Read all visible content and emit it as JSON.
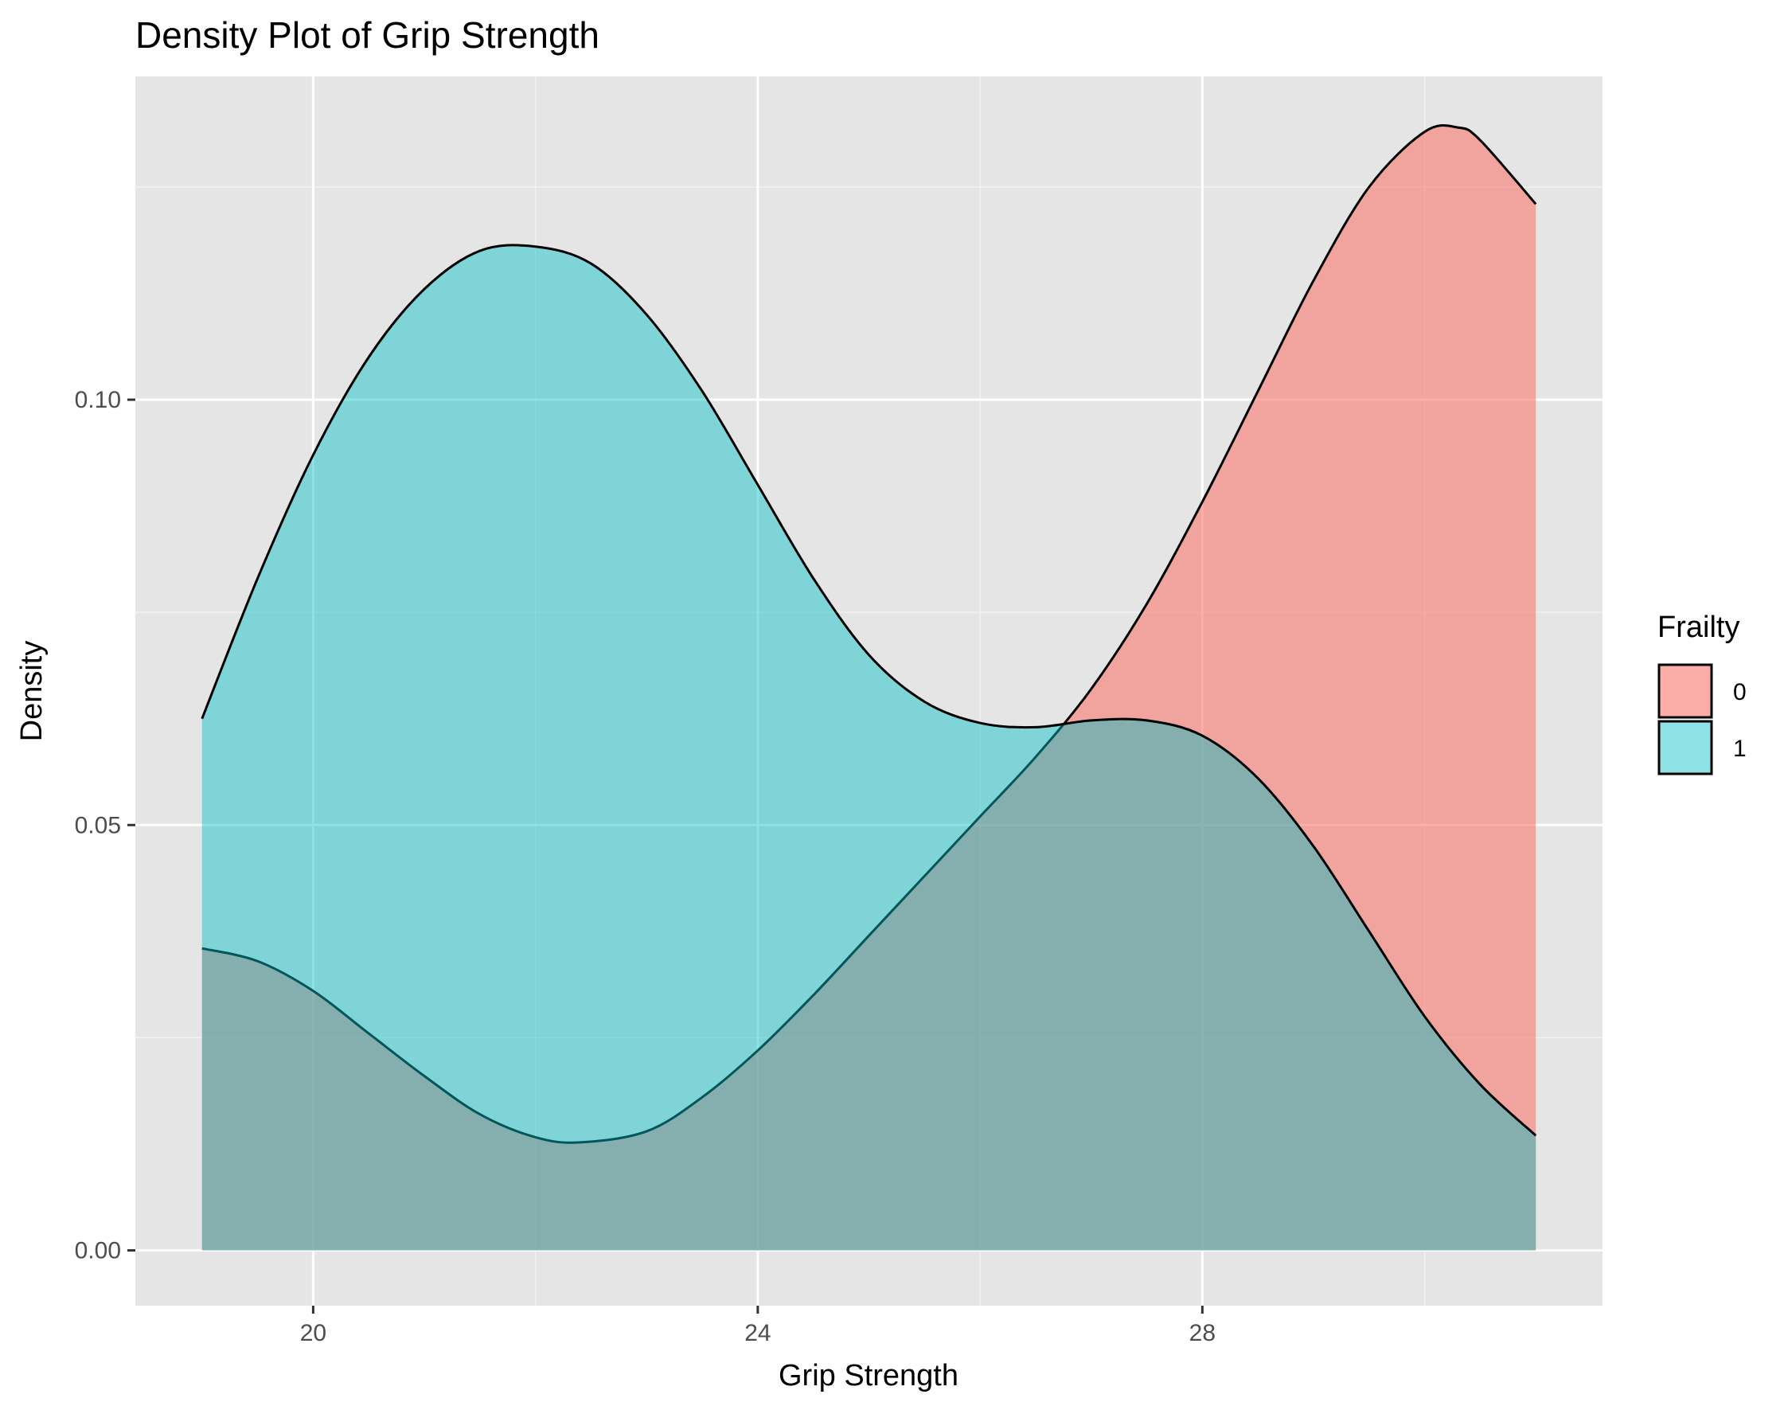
{
  "chart_data": {
    "type": "area",
    "title": "Density Plot of Grip Strength",
    "xlabel": "Grip Strength",
    "ylabel": "Density",
    "xlim": [
      18.4,
      31.6
    ],
    "ylim": [
      -0.0065,
      0.138
    ],
    "x_ticks": [
      20,
      24,
      28
    ],
    "x_tick_labels": [
      "20",
      "24",
      "28"
    ],
    "x_minor_ticks": [
      22,
      26,
      30
    ],
    "y_ticks": [
      0.0,
      0.05,
      0.1
    ],
    "y_tick_labels": [
      "0.00",
      "0.05",
      "0.10"
    ],
    "y_minor_ticks": [
      0.025,
      0.075,
      0.125
    ],
    "grid": true,
    "panel_background": "#E5E5E5",
    "legend": {
      "title": "Frailty",
      "position": "right"
    },
    "series": [
      {
        "name": "0",
        "fill": "#F8766D",
        "opacity": 0.6,
        "points": [
          [
            19.0,
            0.0355
          ],
          [
            19.5,
            0.034
          ],
          [
            20.0,
            0.0305
          ],
          [
            20.5,
            0.0255
          ],
          [
            21.0,
            0.0205
          ],
          [
            21.5,
            0.016
          ],
          [
            22.0,
            0.0133
          ],
          [
            22.4,
            0.0127
          ],
          [
            23.0,
            0.014
          ],
          [
            23.5,
            0.018
          ],
          [
            24.0,
            0.0235
          ],
          [
            24.5,
            0.03
          ],
          [
            25.0,
            0.037
          ],
          [
            25.5,
            0.044
          ],
          [
            26.0,
            0.051
          ],
          [
            26.5,
            0.058
          ],
          [
            27.0,
            0.066
          ],
          [
            27.5,
            0.076
          ],
          [
            28.0,
            0.088
          ],
          [
            28.5,
            0.101
          ],
          [
            29.0,
            0.114
          ],
          [
            29.5,
            0.125
          ],
          [
            30.0,
            0.1315
          ],
          [
            30.3,
            0.132
          ],
          [
            30.5,
            0.1305
          ],
          [
            31.0,
            0.123
          ]
        ]
      },
      {
        "name": "1",
        "fill": "#00BFC4",
        "opacity": 0.45,
        "points": [
          [
            19.0,
            0.0625
          ],
          [
            19.5,
            0.079
          ],
          [
            20.0,
            0.0935
          ],
          [
            20.5,
            0.105
          ],
          [
            21.0,
            0.113
          ],
          [
            21.5,
            0.1175
          ],
          [
            22.0,
            0.118
          ],
          [
            22.5,
            0.116
          ],
          [
            23.0,
            0.11
          ],
          [
            23.5,
            0.101
          ],
          [
            24.0,
            0.09
          ],
          [
            24.5,
            0.079
          ],
          [
            25.0,
            0.07
          ],
          [
            25.5,
            0.0645
          ],
          [
            26.0,
            0.062
          ],
          [
            26.5,
            0.0615
          ],
          [
            27.0,
            0.0623
          ],
          [
            27.5,
            0.0623
          ],
          [
            28.0,
            0.0605
          ],
          [
            28.5,
            0.0555
          ],
          [
            29.0,
            0.0475
          ],
          [
            29.5,
            0.0375
          ],
          [
            30.0,
            0.0275
          ],
          [
            30.5,
            0.0195
          ],
          [
            31.0,
            0.0135
          ]
        ]
      }
    ]
  }
}
